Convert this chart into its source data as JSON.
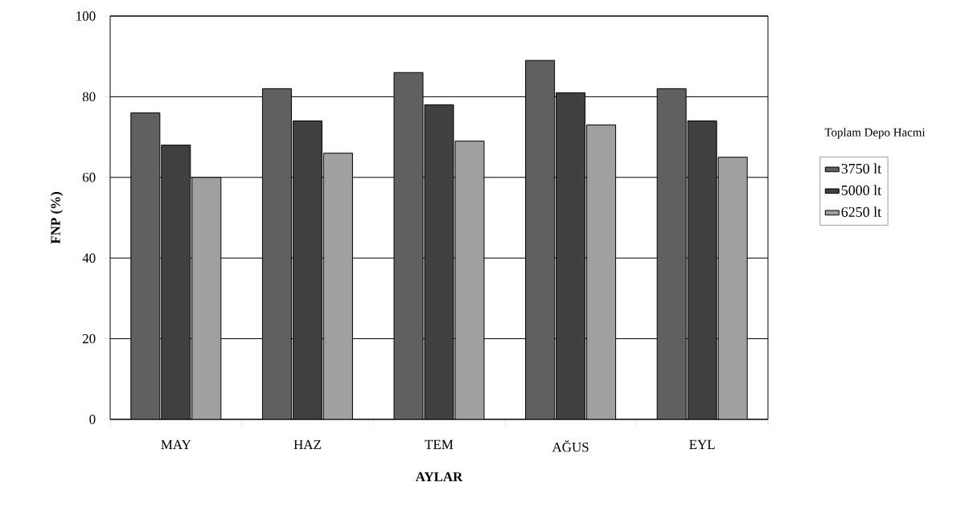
{
  "chart_data": {
    "type": "bar",
    "xlabel": "AYLAR",
    "ylabel": "FNP (%)",
    "legend_title": "Toplam Depo Hacmi",
    "categories": [
      "MAY",
      "HAZ",
      "TEM",
      "AĞUS",
      "EYL"
    ],
    "series": [
      {
        "name": "3750 lt",
        "color": "#606060",
        "values": [
          76,
          82,
          86,
          89,
          82
        ]
      },
      {
        "name": "5000 lt",
        "color": "#404040",
        "values": [
          68,
          74,
          78,
          81,
          74
        ]
      },
      {
        "name": "6250 lt",
        "color": "#a0a0a0",
        "values": [
          60,
          66,
          69,
          73,
          65
        ]
      }
    ],
    "ylim": [
      0,
      100
    ],
    "yticks": [
      0,
      20,
      40,
      60,
      80,
      100
    ],
    "grid": "y",
    "legend": "right"
  }
}
